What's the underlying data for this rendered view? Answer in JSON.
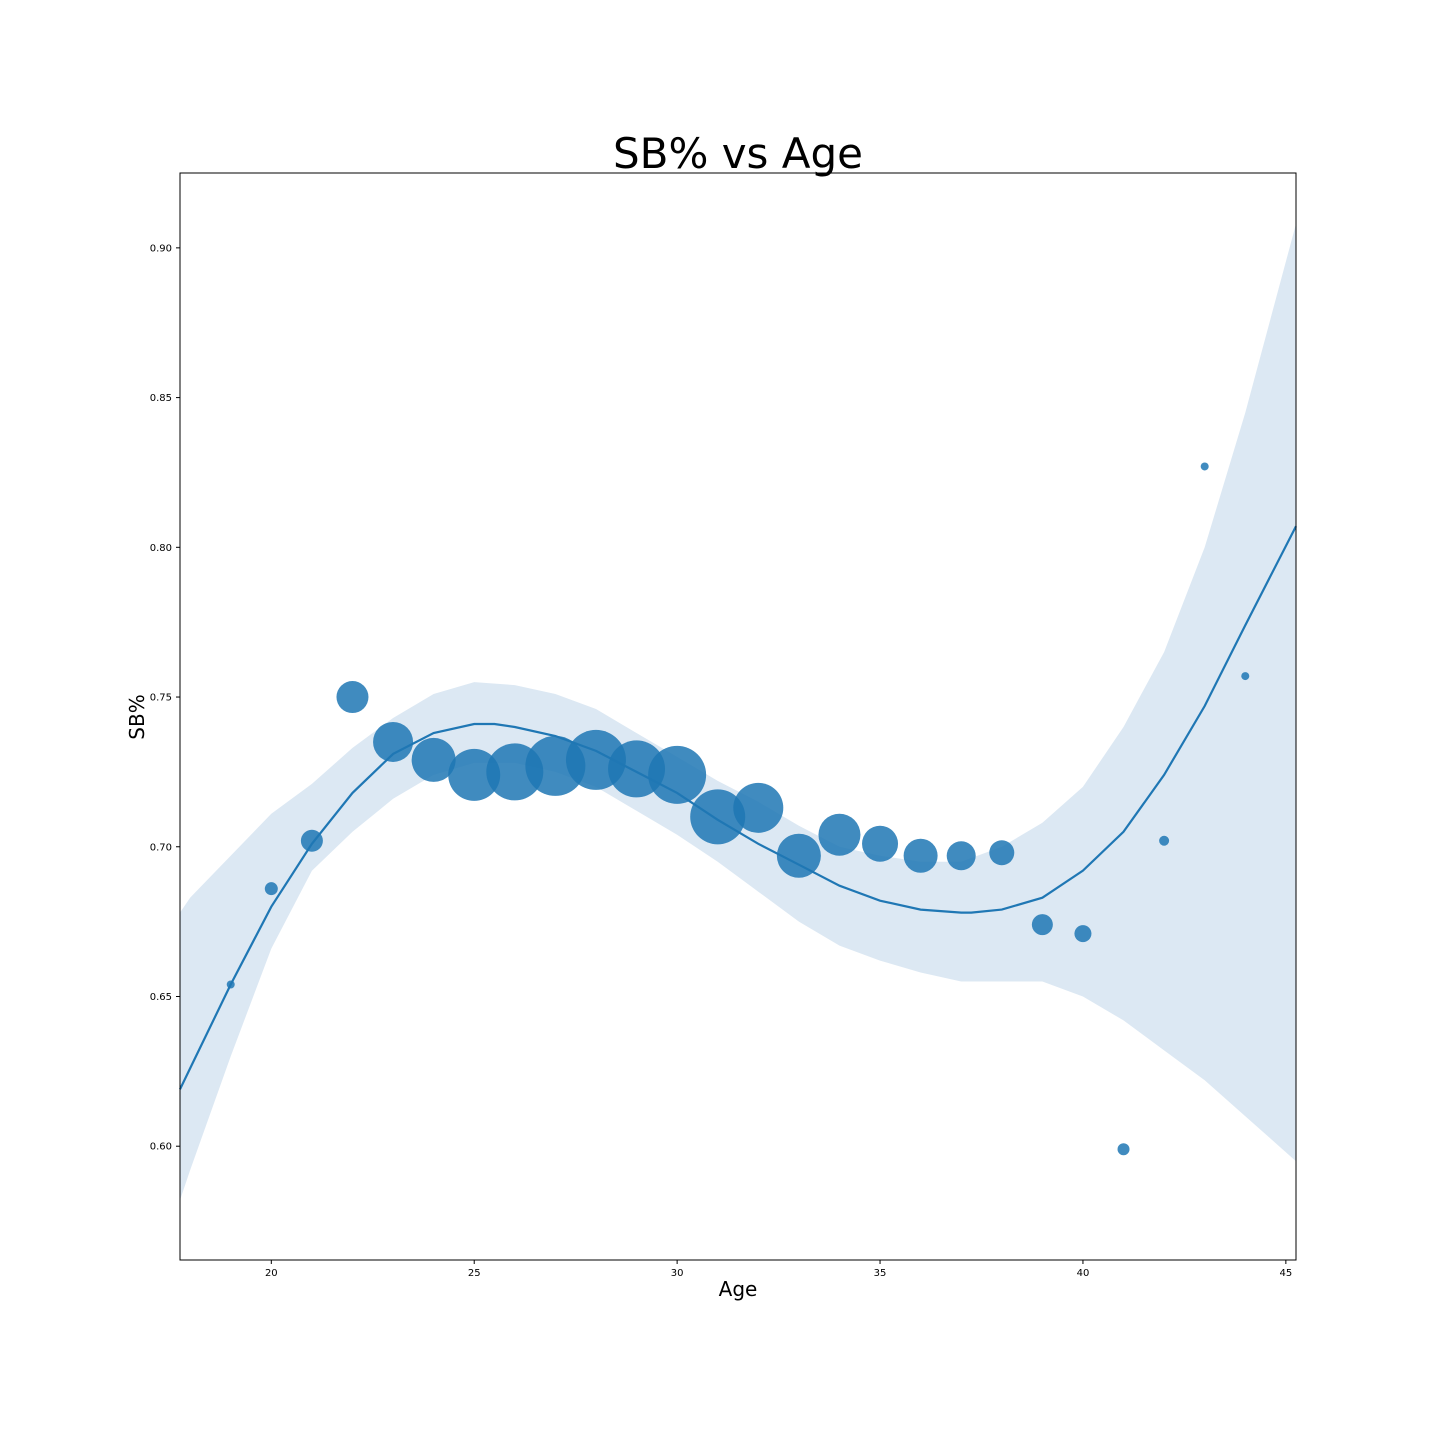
{
  "chart_data": {
    "type": "scatter",
    "title": "SB% vs Age",
    "xlabel": "Age",
    "ylabel": "SB%",
    "xlim": [
      17.75,
      45.25
    ],
    "ylim": [
      0.562,
      0.925
    ],
    "xticks": [
      20,
      25,
      30,
      35,
      40,
      45
    ],
    "yticks": [
      0.6,
      0.65,
      0.7,
      0.75,
      0.8,
      0.85,
      0.9
    ],
    "xtick_labels": [
      "20",
      "25",
      "30",
      "35",
      "40",
      "45"
    ],
    "ytick_labels": [
      "0.60",
      "0.65",
      "0.70",
      "0.75",
      "0.80",
      "0.85",
      "0.90"
    ],
    "grid": false,
    "color": "#1f77b4",
    "band_color": "#dce8f3",
    "points": [
      {
        "x": 19,
        "y": 0.654,
        "size": 6
      },
      {
        "x": 20,
        "y": 0.686,
        "size": 11
      },
      {
        "x": 21,
        "y": 0.702,
        "size": 20
      },
      {
        "x": 22,
        "y": 0.75,
        "size": 30
      },
      {
        "x": 23,
        "y": 0.735,
        "size": 38
      },
      {
        "x": 24,
        "y": 0.729,
        "size": 42
      },
      {
        "x": 25,
        "y": 0.724,
        "size": 50
      },
      {
        "x": 26,
        "y": 0.725,
        "size": 55
      },
      {
        "x": 27,
        "y": 0.727,
        "size": 58
      },
      {
        "x": 28,
        "y": 0.729,
        "size": 58
      },
      {
        "x": 29,
        "y": 0.726,
        "size": 55
      },
      {
        "x": 30,
        "y": 0.724,
        "size": 56
      },
      {
        "x": 31,
        "y": 0.71,
        "size": 53
      },
      {
        "x": 32,
        "y": 0.713,
        "size": 48
      },
      {
        "x": 33,
        "y": 0.697,
        "size": 42
      },
      {
        "x": 34,
        "y": 0.704,
        "size": 40
      },
      {
        "x": 35,
        "y": 0.701,
        "size": 34
      },
      {
        "x": 36,
        "y": 0.697,
        "size": 32
      },
      {
        "x": 37,
        "y": 0.697,
        "size": 27
      },
      {
        "x": 38,
        "y": 0.698,
        "size": 23
      },
      {
        "x": 39,
        "y": 0.674,
        "size": 19
      },
      {
        "x": 40,
        "y": 0.671,
        "size": 15
      },
      {
        "x": 41,
        "y": 0.599,
        "size": 10
      },
      {
        "x": 42,
        "y": 0.702,
        "size": 8
      },
      {
        "x": 43,
        "y": 0.827,
        "size": 6
      },
      {
        "x": 44,
        "y": 0.757,
        "size": 6
      }
    ],
    "fit_curve": {
      "x": [
        17.75,
        18,
        19,
        20,
        21,
        22,
        23,
        24,
        25,
        25.5,
        26,
        27,
        28,
        29,
        30,
        31,
        32,
        33,
        34,
        35,
        36,
        37,
        37.25,
        38,
        39,
        40,
        41,
        42,
        43,
        44,
        45.25
      ],
      "y": [
        0.619,
        0.626,
        0.654,
        0.68,
        0.701,
        0.718,
        0.731,
        0.738,
        0.741,
        0.741,
        0.74,
        0.737,
        0.732,
        0.725,
        0.718,
        0.709,
        0.701,
        0.694,
        0.687,
        0.682,
        0.679,
        0.678,
        0.678,
        0.679,
        0.683,
        0.692,
        0.705,
        0.724,
        0.747,
        0.774,
        0.807
      ]
    },
    "confidence_band": {
      "x": [
        17.75,
        18,
        19,
        20,
        21,
        22,
        23,
        24,
        25,
        26,
        27,
        28,
        29,
        30,
        31,
        32,
        33,
        34,
        35,
        36,
        37,
        38,
        39,
        40,
        41,
        42,
        43,
        44,
        45.25
      ],
      "upper": [
        0.678,
        0.683,
        0.697,
        0.711,
        0.721,
        0.733,
        0.743,
        0.751,
        0.755,
        0.754,
        0.751,
        0.746,
        0.738,
        0.73,
        0.722,
        0.715,
        0.707,
        0.7,
        0.697,
        0.695,
        0.695,
        0.7,
        0.708,
        0.72,
        0.74,
        0.765,
        0.8,
        0.845,
        0.908
      ],
      "lower": [
        0.582,
        0.592,
        0.63,
        0.666,
        0.692,
        0.705,
        0.716,
        0.724,
        0.728,
        0.728,
        0.725,
        0.72,
        0.712,
        0.704,
        0.695,
        0.685,
        0.675,
        0.667,
        0.662,
        0.658,
        0.655,
        0.655,
        0.655,
        0.65,
        0.642,
        0.632,
        0.622,
        0.61,
        0.595
      ]
    }
  }
}
